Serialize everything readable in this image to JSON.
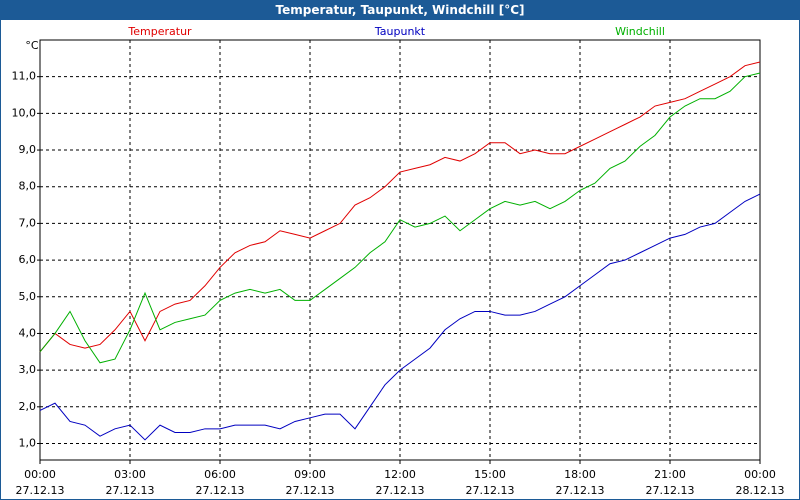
{
  "chart_data": {
    "type": "line",
    "title": "Temperatur, Taupunkt, Windchill [°C]",
    "y_unit": "°C",
    "x": [
      0,
      0.5,
      1,
      1.5,
      2,
      2.5,
      3,
      3.5,
      4,
      4.5,
      5,
      5.5,
      6,
      6.5,
      7,
      7.5,
      8,
      8.5,
      9,
      9.5,
      10,
      10.5,
      11,
      11.5,
      12,
      12.5,
      13,
      13.5,
      14,
      14.5,
      15,
      15.5,
      16,
      16.5,
      17,
      17.5,
      18,
      18.5,
      19,
      19.5,
      20,
      20.5,
      21,
      21.5,
      22,
      22.5,
      23,
      23.5,
      24
    ],
    "series": [
      {
        "name": "Temperatur",
        "color": "#e00000",
        "values": [
          3.5,
          4.0,
          3.7,
          3.6,
          3.7,
          4.1,
          4.6,
          3.8,
          4.6,
          4.8,
          4.9,
          5.3,
          5.8,
          6.2,
          6.4,
          6.5,
          6.8,
          6.7,
          6.6,
          6.8,
          7.0,
          7.5,
          7.7,
          8.0,
          8.4,
          8.5,
          8.6,
          8.8,
          8.7,
          8.9,
          9.2,
          9.2,
          8.9,
          9.0,
          8.9,
          8.9,
          9.1,
          9.3,
          9.5,
          9.7,
          9.9,
          10.2,
          10.3,
          10.4,
          10.6,
          10.8,
          11.0,
          11.3,
          11.4
        ]
      },
      {
        "name": "Taupunkt",
        "color": "#0000c0",
        "values": [
          1.9,
          2.1,
          1.6,
          1.5,
          1.2,
          1.4,
          1.5,
          1.1,
          1.5,
          1.3,
          1.3,
          1.4,
          1.4,
          1.5,
          1.5,
          1.5,
          1.4,
          1.6,
          1.7,
          1.8,
          1.8,
          1.4,
          2.0,
          2.6,
          3.0,
          3.3,
          3.6,
          4.1,
          4.4,
          4.6,
          4.6,
          4.5,
          4.5,
          4.6,
          4.8,
          5.0,
          5.3,
          5.6,
          5.9,
          6.0,
          6.2,
          6.4,
          6.6,
          6.7,
          6.9,
          7.0,
          7.3,
          7.6,
          7.8
        ]
      },
      {
        "name": "Windchill",
        "color": "#00b000",
        "values": [
          3.5,
          4.0,
          4.6,
          3.8,
          3.2,
          3.3,
          4.1,
          5.1,
          4.1,
          4.3,
          4.4,
          4.5,
          4.9,
          5.1,
          5.2,
          5.1,
          5.2,
          4.9,
          4.9,
          5.2,
          5.5,
          5.8,
          6.2,
          6.5,
          7.1,
          6.9,
          7.0,
          7.2,
          6.8,
          7.1,
          7.4,
          7.6,
          7.5,
          7.6,
          7.4,
          7.6,
          7.9,
          8.1,
          8.5,
          8.7,
          9.1,
          9.4,
          9.9,
          10.2,
          10.4,
          10.4,
          10.6,
          11.0,
          11.1
        ]
      }
    ],
    "xlim": [
      0,
      24
    ],
    "xticks": [
      {
        "value": 0,
        "label": "00:00"
      },
      {
        "value": 3,
        "label": "03:00"
      },
      {
        "value": 6,
        "label": "06:00"
      },
      {
        "value": 9,
        "label": "09:00"
      },
      {
        "value": 12,
        "label": "12:00"
      },
      {
        "value": 15,
        "label": "15:00"
      },
      {
        "value": 18,
        "label": "18:00"
      },
      {
        "value": 21,
        "label": "21:00"
      },
      {
        "value": 24,
        "label": "00:00"
      }
    ],
    "xtick_dates": [
      "27.12.13",
      "27.12.13",
      "27.12.13",
      "27.12.13",
      "27.12.13",
      "27.12.13",
      "27.12.13",
      "27.12.13",
      "28.12.13"
    ],
    "ylim": [
      0.55,
      12.0
    ],
    "yticks": [
      {
        "value": 1,
        "label": "1,0"
      },
      {
        "value": 2,
        "label": "2,0"
      },
      {
        "value": 3,
        "label": "3,0"
      },
      {
        "value": 4,
        "label": "4,0"
      },
      {
        "value": 5,
        "label": "5,0"
      },
      {
        "value": 6,
        "label": "6,0"
      },
      {
        "value": 7,
        "label": "7,0"
      },
      {
        "value": 8,
        "label": "8,0"
      },
      {
        "value": 9,
        "label": "9,0"
      },
      {
        "value": 10,
        "label": "10,0"
      },
      {
        "value": 11,
        "label": "11,0"
      }
    ],
    "grid": true
  }
}
